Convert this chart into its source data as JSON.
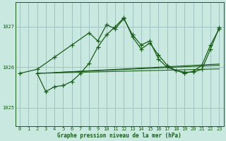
{
  "title": "Graphe pression niveau de la mer (hPa)",
  "bg_color": "#c8e8e0",
  "grid_color": "#9bbfbf",
  "line_color": "#1a5c1a",
  "xlim": [
    -0.5,
    23.5
  ],
  "ylim": [
    1024.55,
    1027.6
  ],
  "yticks": [
    1025,
    1026,
    1027
  ],
  "xticks": [
    0,
    1,
    2,
    3,
    4,
    5,
    6,
    7,
    8,
    9,
    10,
    11,
    12,
    13,
    14,
    15,
    16,
    17,
    18,
    19,
    20,
    21,
    22,
    23
  ],
  "series_peaky_x": [
    0,
    2,
    4,
    6,
    8,
    9,
    10,
    11,
    12,
    13,
    14,
    15,
    16,
    17,
    19,
    20,
    21,
    22,
    23
  ],
  "series_peaky_y": [
    1025.85,
    1025.95,
    1026.25,
    1026.55,
    1026.85,
    1026.65,
    1027.05,
    1026.95,
    1027.2,
    1026.8,
    1026.55,
    1026.65,
    1026.2,
    1026.0,
    1025.85,
    1025.9,
    1026.05,
    1026.55,
    1026.95
  ],
  "series_dip_x": [
    2,
    3,
    4,
    5,
    6,
    7,
    8,
    9,
    10,
    11,
    12,
    13,
    14,
    15,
    16,
    17,
    18,
    19,
    20,
    21,
    22,
    23
  ],
  "series_dip_y": [
    1025.85,
    1025.4,
    1025.52,
    1025.55,
    1025.65,
    1025.85,
    1026.1,
    1026.5,
    1026.8,
    1027.0,
    1027.22,
    1026.75,
    1026.45,
    1026.6,
    1026.3,
    1026.05,
    1025.92,
    1025.88,
    1025.88,
    1025.95,
    1026.45,
    1026.98
  ],
  "trend1_x": [
    2,
    23
  ],
  "trend1_y": [
    1025.85,
    1025.96
  ],
  "trend2_x": [
    2,
    23
  ],
  "trend2_y": [
    1025.85,
    1026.05
  ],
  "trend3_x": [
    4,
    23
  ],
  "trend3_y": [
    1025.87,
    1026.08
  ]
}
